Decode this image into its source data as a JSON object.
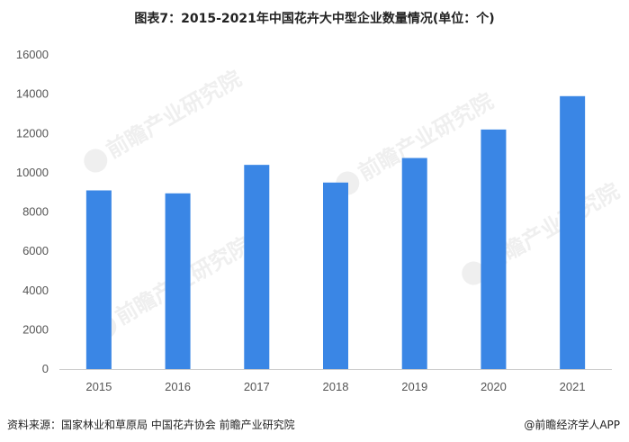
{
  "chart_data": {
    "type": "bar",
    "title": "图表7：2015-2021年中国花卉大中型企业数量情况(单位：个)",
    "categories": [
      "2015",
      "2016",
      "2017",
      "2018",
      "2019",
      "2020",
      "2021"
    ],
    "values": [
      9100,
      8950,
      10400,
      9500,
      10750,
      12200,
      13900
    ],
    "ylim": [
      0,
      16000
    ],
    "yticks": [
      0,
      2000,
      4000,
      6000,
      8000,
      10000,
      12000,
      14000,
      16000
    ],
    "grid": false,
    "legend": "none",
    "bar_color": "#3a86e5"
  },
  "watermark": "前瞻产业研究院",
  "footer": {
    "source": "资料来源：国家林业和草原局 中国花卉协会 前瞻产业研究院",
    "credit": "@前瞻经济学人APP"
  }
}
